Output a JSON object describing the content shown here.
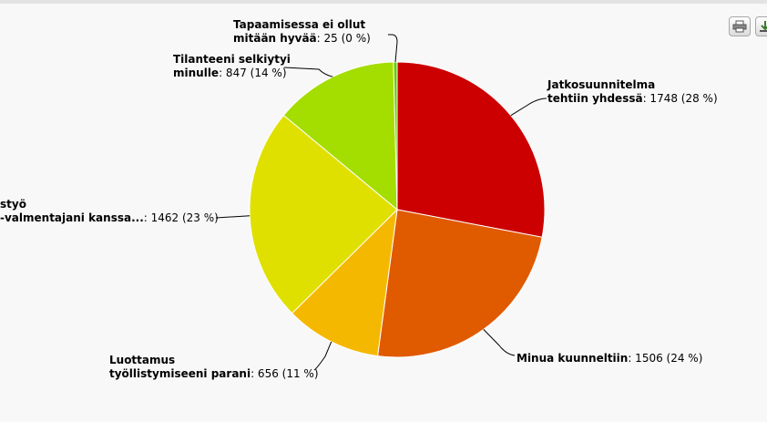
{
  "toolbar": {
    "print_icon": "printer-icon",
    "export_icon": "download-icon"
  },
  "chart_data": {
    "type": "pie",
    "slices": [
      {
        "label_lines": [
          "Jatkosuunnitelma",
          "tehtiin yhdessä"
        ],
        "value": 1748,
        "percent_text": "1748 (28 %)",
        "color": "#cc0000"
      },
      {
        "label_lines": [
          "Minua kuunneltiin"
        ],
        "value": 1506,
        "percent_text": "1506 (24 %)",
        "color": "#e05a00"
      },
      {
        "label_lines": [
          "Luottamus",
          "työllistymiseeni parani"
        ],
        "value": 656,
        "percent_text": "656 (11 %)",
        "color": "#f5b800"
      },
      {
        "label_lines": [
          "styö",
          "-valmentajani kanssa..."
        ],
        "value": 1462,
        "percent_text": "1462 (23 %)",
        "color": "#e0e000"
      },
      {
        "label_lines": [
          "Tilanteeni selkiytyi",
          "minulle"
        ],
        "value": 847,
        "percent_text": "847 (14 %)",
        "color": "#a4dd00"
      },
      {
        "label_lines": [
          "Tapaamisessa ei ollut",
          "mitään hyvää"
        ],
        "value": 25,
        "percent_text": "25 (0 %)",
        "color": "#66cc00"
      }
    ]
  }
}
